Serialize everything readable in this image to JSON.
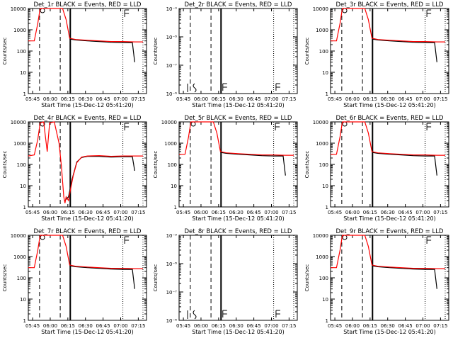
{
  "chart_data": [
    {
      "type": "line",
      "title": "Det_1r BLACK = Events, RED = LLD",
      "xlabel": "Start Time (15-Dec-12 05:41:20)",
      "ylabel": "Counts/sec",
      "yscale": "log",
      "ylim": [
        1,
        10000
      ],
      "xlim": [
        "05:41:20",
        "07:22:00"
      ],
      "x_ticks": [
        "05:45",
        "06:00",
        "06:15",
        "06:30",
        "06:45",
        "07:00",
        "07:15"
      ],
      "y_ticks": [
        "1",
        "10",
        "100",
        "1000",
        "10000"
      ],
      "has_data": true,
      "profile": "normal",
      "series": [
        {
          "name": "Events",
          "color": "#000000"
        },
        {
          "name": "LLD",
          "color": "#ff0000"
        }
      ]
    },
    {
      "type": "line",
      "title": "Det_2r BLACK = Events, RED = LLD",
      "xlabel": "Start Time (15-Dec-12 05:41:20)",
      "ylabel": "Counts/sec",
      "yscale": "log",
      "ylim": [
        1e-06,
        1e-09
      ],
      "xlim": [
        "05:41:20",
        "07:22:00"
      ],
      "x_ticks": [
        "05:45",
        "06:00",
        "06:15",
        "06:30",
        "06:45",
        "07:00",
        "07:15"
      ],
      "y_ticks": [
        "10⁻⁶",
        "10⁻⁷",
        "10⁻⁸",
        "10⁻⁹"
      ],
      "has_data": false,
      "profile": "empty",
      "series": [
        {
          "name": "Events",
          "color": "#000000"
        },
        {
          "name": "LLD",
          "color": "#ff0000"
        }
      ]
    },
    {
      "type": "line",
      "title": "Det_3r BLACK = Events, RED = LLD",
      "xlabel": "Start Time (15-Dec-12 05:41:20)",
      "ylabel": "Counts/sec",
      "yscale": "log",
      "ylim": [
        1,
        10000
      ],
      "xlim": [
        "05:41:20",
        "07:22:00"
      ],
      "x_ticks": [
        "05:45",
        "06:00",
        "06:15",
        "06:30",
        "06:45",
        "07:00",
        "07:15"
      ],
      "y_ticks": [
        "1",
        "10",
        "100",
        "1000",
        "10000"
      ],
      "has_data": true,
      "profile": "normal",
      "series": [
        {
          "name": "Events",
          "color": "#000000"
        },
        {
          "name": "LLD",
          "color": "#ff0000"
        }
      ]
    },
    {
      "type": "line",
      "title": "Det_4r BLACK = Events, RED = LLD",
      "xlabel": "Start Time (15-Dec-12 05:41:20)",
      "ylabel": "Counts/sec",
      "yscale": "log",
      "ylim": [
        1,
        10000
      ],
      "xlim": [
        "05:41:20",
        "07:22:00"
      ],
      "x_ticks": [
        "05:45",
        "06:00",
        "06:15",
        "06:30",
        "06:45",
        "07:00",
        "07:15"
      ],
      "y_ticks": [
        "1",
        "10",
        "100",
        "1000",
        "10000"
      ],
      "has_data": true,
      "profile": "dip",
      "series": [
        {
          "name": "Events",
          "color": "#000000"
        },
        {
          "name": "LLD",
          "color": "#ff0000"
        }
      ]
    },
    {
      "type": "line",
      "title": "Det_5r BLACK = Events, RED = LLD",
      "xlabel": "Start Time (15-Dec-12 05:41:20)",
      "ylabel": "Counts/sec",
      "yscale": "log",
      "ylim": [
        1,
        10000
      ],
      "xlim": [
        "05:41:20",
        "07:22:00"
      ],
      "x_ticks": [
        "05:45",
        "06:00",
        "06:15",
        "06:30",
        "06:45",
        "07:00",
        "07:15"
      ],
      "y_ticks": [
        "1",
        "10",
        "100",
        "1000",
        "10000"
      ],
      "has_data": true,
      "profile": "normal",
      "series": [
        {
          "name": "Events",
          "color": "#000000"
        },
        {
          "name": "LLD",
          "color": "#ff0000"
        }
      ]
    },
    {
      "type": "line",
      "title": "Det_6r BLACK = Events, RED = LLD",
      "xlabel": "Start Time (15-Dec-12 05:41:20)",
      "ylabel": "Counts/sec",
      "yscale": "log",
      "ylim": [
        1,
        10000
      ],
      "xlim": [
        "05:41:20",
        "07:22:00"
      ],
      "x_ticks": [
        "05:45",
        "06:00",
        "06:15",
        "06:30",
        "06:45",
        "07:00",
        "07:15"
      ],
      "y_ticks": [
        "1",
        "10",
        "100",
        "1000",
        "10000"
      ],
      "has_data": true,
      "profile": "normal",
      "series": [
        {
          "name": "Events",
          "color": "#000000"
        },
        {
          "name": "LLD",
          "color": "#ff0000"
        }
      ]
    },
    {
      "type": "line",
      "title": "Det_7r BLACK = Events, RED = LLD",
      "xlabel": "Start Time (15-Dec-12 05:41:20)",
      "ylabel": "Counts/sec",
      "yscale": "log",
      "ylim": [
        1,
        10000
      ],
      "xlim": [
        "05:41:20",
        "07:22:00"
      ],
      "x_ticks": [
        "05:45",
        "06:00",
        "06:15",
        "06:30",
        "06:45",
        "07:00",
        "07:15"
      ],
      "y_ticks": [
        "1",
        "10",
        "100",
        "1000",
        "10000"
      ],
      "has_data": true,
      "profile": "normal",
      "series": [
        {
          "name": "Events",
          "color": "#000000"
        },
        {
          "name": "LLD",
          "color": "#ff0000"
        }
      ]
    },
    {
      "type": "line",
      "title": "Det_8r BLACK = Events, RED = LLD",
      "xlabel": "Start Time (15-Dec-12 05:41:20)",
      "ylabel": "Counts/sec",
      "yscale": "log",
      "ylim": [
        1e-06,
        1e-09
      ],
      "xlim": [
        "05:41:20",
        "07:22:00"
      ],
      "x_ticks": [
        "05:45",
        "06:00",
        "06:15",
        "06:30",
        "06:45",
        "07:00",
        "07:15"
      ],
      "y_ticks": [
        "10⁻⁶",
        "10⁻⁷",
        "10⁻⁸",
        "10⁻⁹"
      ],
      "has_data": false,
      "profile": "empty",
      "series": [
        {
          "name": "Events",
          "color": "#000000"
        },
        {
          "name": "LLD",
          "color": "#ff0000"
        }
      ]
    },
    {
      "type": "line",
      "title": "Det_9r BLACK = Events, RED = LLD",
      "xlabel": "Start Time (15-Dec-12 05:41:20)",
      "ylabel": "Counts/sec",
      "yscale": "log",
      "ylim": [
        1,
        10000
      ],
      "xlim": [
        "05:41:20",
        "07:22:00"
      ],
      "x_ticks": [
        "05:45",
        "06:00",
        "06:15",
        "06:30",
        "06:45",
        "07:00",
        "07:15"
      ],
      "y_ticks": [
        "1",
        "10",
        "100",
        "1000",
        "10000"
      ],
      "has_data": true,
      "profile": "normal",
      "series": [
        {
          "name": "Events",
          "color": "#000000"
        },
        {
          "name": "LLD",
          "color": "#ff0000"
        }
      ]
    }
  ]
}
